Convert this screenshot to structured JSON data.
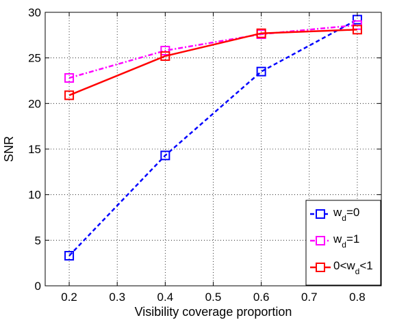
{
  "chart_data": {
    "type": "line",
    "xlabel": "Visibility coverage proportion",
    "ylabel": "SNR",
    "xlim": [
      0.15,
      0.85
    ],
    "ylim": [
      0,
      30
    ],
    "xticks": [
      "0.2",
      "0.3",
      "0.4",
      "0.5",
      "0.6",
      "0.7",
      "0.8"
    ],
    "yticks": [
      "0",
      "5",
      "10",
      "15",
      "20",
      "25",
      "30"
    ],
    "grid": true,
    "legend_position": "bottom-right",
    "x": [
      0.2,
      0.4,
      0.6,
      0.8
    ],
    "series": [
      {
        "name_main": "w",
        "name_sub": "d",
        "name_tail": "=0",
        "values": [
          3.3,
          14.3,
          23.5,
          29.2
        ],
        "color": "#0000ff",
        "style": "dashed",
        "marker": "square"
      },
      {
        "name_main": "w",
        "name_sub": "d",
        "name_tail": "=1",
        "values": [
          22.8,
          25.8,
          27.6,
          28.6
        ],
        "color": "#ff00ff",
        "style": "dashdot",
        "marker": "square"
      },
      {
        "name_main": "0<w",
        "name_sub": "d",
        "name_tail": "<1",
        "values": [
          20.9,
          25.2,
          27.7,
          28.1
        ],
        "color": "#ff0000",
        "style": "solid",
        "marker": "square"
      }
    ]
  }
}
